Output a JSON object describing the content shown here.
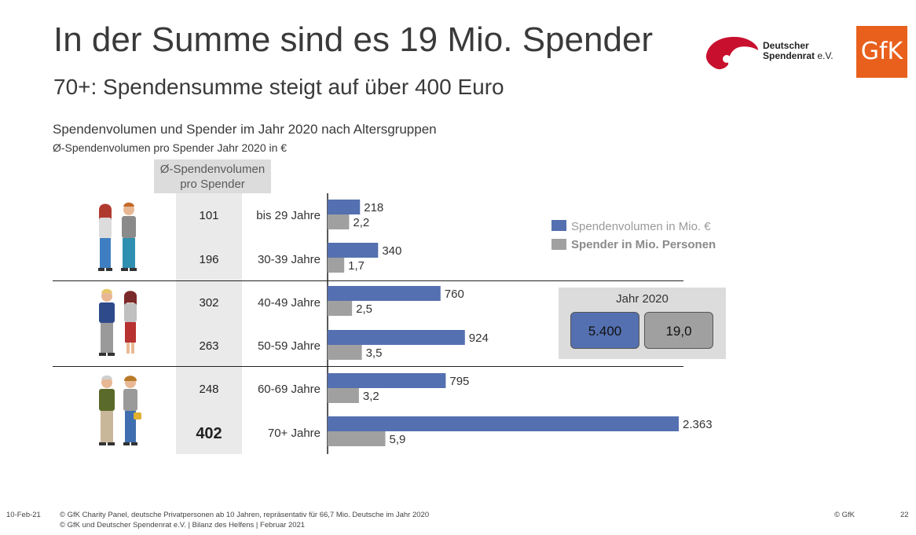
{
  "header": {
    "title": "In der Summe sind es 19 Mio. Spender",
    "subtitle": "70+: Spendensumme steigt auf über 400 Euro"
  },
  "logos": {
    "dsr_line1": "Deutscher",
    "dsr_line2": "Spendenrat",
    "dsr_suffix": "e.V.",
    "gfk": "GfK"
  },
  "avg_column": {
    "header": "Ø-Spendenvolumen pro Spender",
    "values": [
      "101",
      "196",
      "302",
      "263",
      "248",
      "402"
    ]
  },
  "kpi": {
    "title": "Jahr 2020",
    "volume": "5.400",
    "donors": "19,0"
  },
  "colors": {
    "volume": "#5470b0",
    "donors": "#a0a0a0"
  },
  "chart_data": {
    "type": "bar",
    "orientation": "horizontal",
    "title": "Spendenvolumen und Spender im Jahr 2020 nach Altersgruppen",
    "subtitle": "Ø-Spendenvolumen pro Spender Jahr 2020 in €",
    "categories": [
      "bis 29 Jahre",
      "30-39 Jahre",
      "40-49 Jahre",
      "50-59 Jahre",
      "60-69 Jahre",
      "70+ Jahre"
    ],
    "series": [
      {
        "name": "Spendenvolumen in Mio. €",
        "values": [
          218,
          340,
          760,
          924,
          795,
          2363
        ],
        "labels": [
          "218",
          "340",
          "760",
          "924",
          "795",
          "2.363"
        ]
      },
      {
        "name": "Spender in Mio. Personen",
        "values": [
          2.2,
          1.7,
          2.5,
          3.5,
          3.2,
          5.9
        ],
        "labels": [
          "2,2",
          "1,7",
          "2,5",
          "3,5",
          "3,2",
          "5,9"
        ]
      }
    ],
    "legend_position": "right",
    "grid": false
  },
  "footer": {
    "date": "10-Feb-21",
    "source_line1": "© GfK Charity Panel, deutsche Privatpersonen ab 10 Jahren, repräsentativ für 66,7 Mio. Deutsche im Jahr 2020",
    "source_line2": "© GfK und Deutscher Spendenrat e.V. | Bilanz des Helfens | Februar 2021",
    "copyright": "© GfK",
    "page_number": "22"
  }
}
